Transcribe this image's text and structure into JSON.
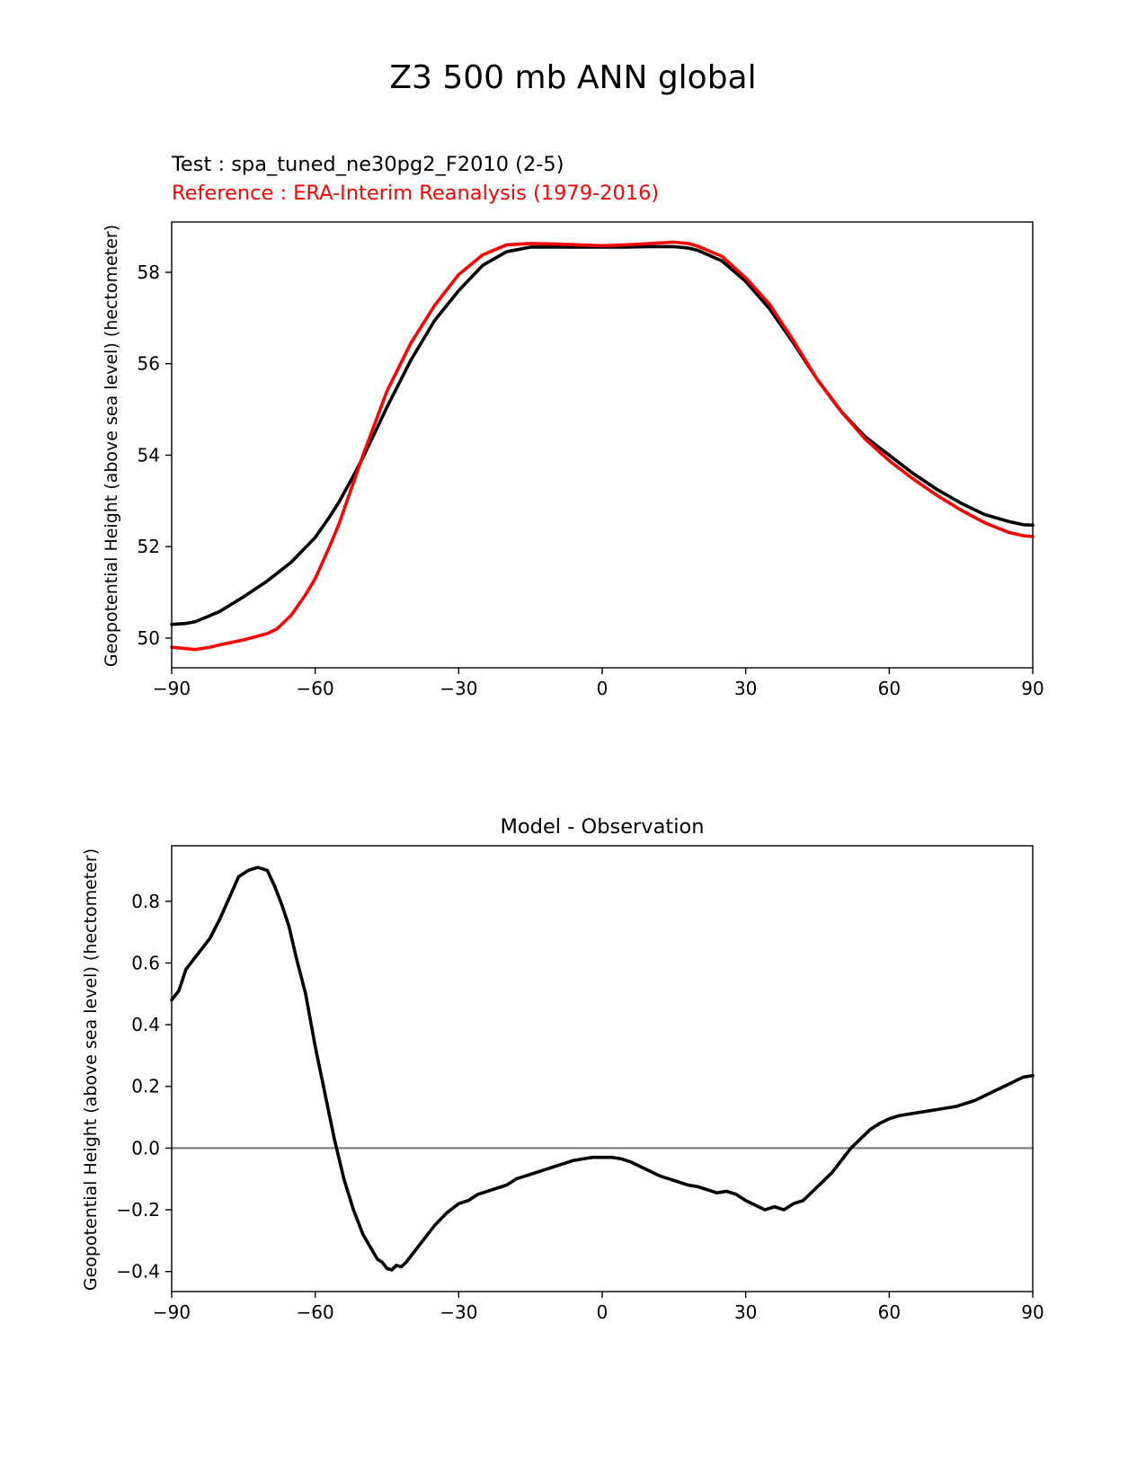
{
  "figure": {
    "suptitle": "Z3 500 mb ANN global"
  },
  "chart_data": [
    {
      "type": "line",
      "title_lines": [
        {
          "text": "Test : spa_tuned_ne30pg2_F2010 (2-5)",
          "color": "#000000"
        },
        {
          "text": "Reference : ERA-Interim Reanalysis (1979-2016)",
          "color": "#ff0000"
        }
      ],
      "ylabel": "Geopotential Height (above sea level) (hectometer)",
      "xlabel": "",
      "xlim": [
        -90,
        90
      ],
      "ylim": [
        49.35,
        59.1
      ],
      "xticks": [
        -90,
        -60,
        -30,
        0,
        30,
        60,
        90
      ],
      "xtick_labels": [
        "−90",
        "−60",
        "−30",
        "0",
        "30",
        "60",
        "90"
      ],
      "yticks": [
        50,
        52,
        54,
        56,
        58
      ],
      "ytick_labels": [
        "50",
        "52",
        "54",
        "56",
        "58"
      ],
      "grid": false,
      "series": [
        {
          "role": "test",
          "color": "#000000",
          "x": [
            -90,
            -87,
            -85,
            -80,
            -75,
            -70,
            -65,
            -60,
            -57,
            -55,
            -52,
            -50,
            -45,
            -40,
            -35,
            -30,
            -25,
            -20,
            -15,
            -10,
            -5,
            0,
            5,
            10,
            15,
            18,
            20,
            25,
            30,
            35,
            40,
            45,
            50,
            55,
            60,
            65,
            70,
            75,
            80,
            85,
            88,
            90
          ],
          "y": [
            50.3,
            50.32,
            50.36,
            50.58,
            50.9,
            51.25,
            51.66,
            52.2,
            52.65,
            52.98,
            53.55,
            53.95,
            55.05,
            56.08,
            56.95,
            57.6,
            58.15,
            58.45,
            58.55,
            58.55,
            58.55,
            58.55,
            58.55,
            58.56,
            58.56,
            58.53,
            58.48,
            58.25,
            57.8,
            57.2,
            56.45,
            55.65,
            54.95,
            54.4,
            54.0,
            53.6,
            53.25,
            52.95,
            52.7,
            52.55,
            52.48,
            52.47
          ]
        },
        {
          "role": "reference",
          "color": "#ff0000",
          "x": [
            -90,
            -88,
            -85,
            -82,
            -80,
            -75,
            -70,
            -68,
            -65,
            -62,
            -60,
            -57,
            -55,
            -52,
            -50,
            -45,
            -40,
            -35,
            -30,
            -25,
            -20,
            -15,
            -10,
            -5,
            0,
            5,
            10,
            15,
            18,
            20,
            25,
            30,
            35,
            40,
            45,
            50,
            55,
            60,
            65,
            70,
            75,
            80,
            85,
            88,
            90
          ],
          "y": [
            49.8,
            49.78,
            49.75,
            49.8,
            49.85,
            49.96,
            50.1,
            50.2,
            50.5,
            50.95,
            51.3,
            52.0,
            52.5,
            53.4,
            54.0,
            55.4,
            56.45,
            57.28,
            57.95,
            58.38,
            58.6,
            58.63,
            58.62,
            58.6,
            58.58,
            58.6,
            58.63,
            58.66,
            58.63,
            58.57,
            58.35,
            57.88,
            57.3,
            56.5,
            55.65,
            54.95,
            54.35,
            53.88,
            53.48,
            53.12,
            52.8,
            52.52,
            52.31,
            52.24,
            52.22
          ]
        }
      ]
    },
    {
      "type": "line",
      "title": "Model - Observation",
      "ylabel": "Geopotential Height (above sea level) (hectometer)",
      "xlabel": "",
      "xlim": [
        -90,
        90
      ],
      "ylim": [
        -0.465,
        0.98
      ],
      "xticks": [
        -90,
        -60,
        -30,
        0,
        30,
        60,
        90
      ],
      "xtick_labels": [
        "−90",
        "−60",
        "−30",
        "0",
        "30",
        "60",
        "90"
      ],
      "yticks": [
        -0.4,
        -0.2,
        0.0,
        0.2,
        0.4,
        0.6,
        0.8
      ],
      "ytick_labels": [
        "−0.4",
        "−0.2",
        "0.0",
        "0.2",
        "0.4",
        "0.6",
        "0.8"
      ],
      "grid": false,
      "zero_line": {
        "y": 0,
        "color": "#808080"
      },
      "series": [
        {
          "role": "difference",
          "color": "#000000",
          "x": [
            -90,
            -88.5,
            -87,
            -85.5,
            -84,
            -82,
            -80,
            -78,
            -76,
            -74,
            -72,
            -70,
            -68.5,
            -67,
            -65.5,
            -64,
            -62,
            -60,
            -58,
            -56,
            -54,
            -53,
            -52,
            -50,
            -48.5,
            -47,
            -46,
            -45,
            -44,
            -43,
            -42,
            -41,
            -40,
            -38.5,
            -37,
            -35,
            -32.5,
            -30,
            -28,
            -26,
            -24,
            -22,
            -20,
            -18,
            -16,
            -14,
            -12,
            -10,
            -8,
            -6,
            -4,
            -2,
            0,
            2,
            4,
            6,
            8,
            10,
            12,
            14,
            16,
            18,
            20,
            22,
            24,
            26,
            28,
            30,
            32,
            34,
            36,
            38,
            40,
            42,
            44,
            46,
            48,
            50,
            52,
            54,
            56,
            58,
            60,
            62,
            64,
            66,
            68,
            70,
            72,
            74,
            76,
            78,
            80,
            82,
            84,
            86,
            88,
            90
          ],
          "y": [
            0.48,
            0.51,
            0.58,
            0.61,
            0.64,
            0.68,
            0.74,
            0.81,
            0.88,
            0.9,
            0.91,
            0.9,
            0.85,
            0.79,
            0.72,
            0.62,
            0.5,
            0.33,
            0.18,
            0.03,
            -0.1,
            -0.15,
            -0.2,
            -0.28,
            -0.32,
            -0.36,
            -0.37,
            -0.39,
            -0.395,
            -0.38,
            -0.385,
            -0.37,
            -0.35,
            -0.32,
            -0.29,
            -0.25,
            -0.21,
            -0.18,
            -0.17,
            -0.15,
            -0.14,
            -0.13,
            -0.12,
            -0.1,
            -0.09,
            -0.08,
            -0.07,
            -0.06,
            -0.05,
            -0.04,
            -0.035,
            -0.03,
            -0.03,
            -0.03,
            -0.035,
            -0.045,
            -0.06,
            -0.075,
            -0.09,
            -0.1,
            -0.11,
            -0.12,
            -0.125,
            -0.135,
            -0.145,
            -0.14,
            -0.15,
            -0.17,
            -0.185,
            -0.2,
            -0.19,
            -0.2,
            -0.18,
            -0.17,
            -0.14,
            -0.11,
            -0.08,
            -0.04,
            0.0,
            0.03,
            0.06,
            0.08,
            0.095,
            0.105,
            0.11,
            0.115,
            0.12,
            0.125,
            0.13,
            0.135,
            0.145,
            0.155,
            0.17,
            0.185,
            0.2,
            0.215,
            0.23,
            0.235
          ]
        }
      ]
    }
  ]
}
